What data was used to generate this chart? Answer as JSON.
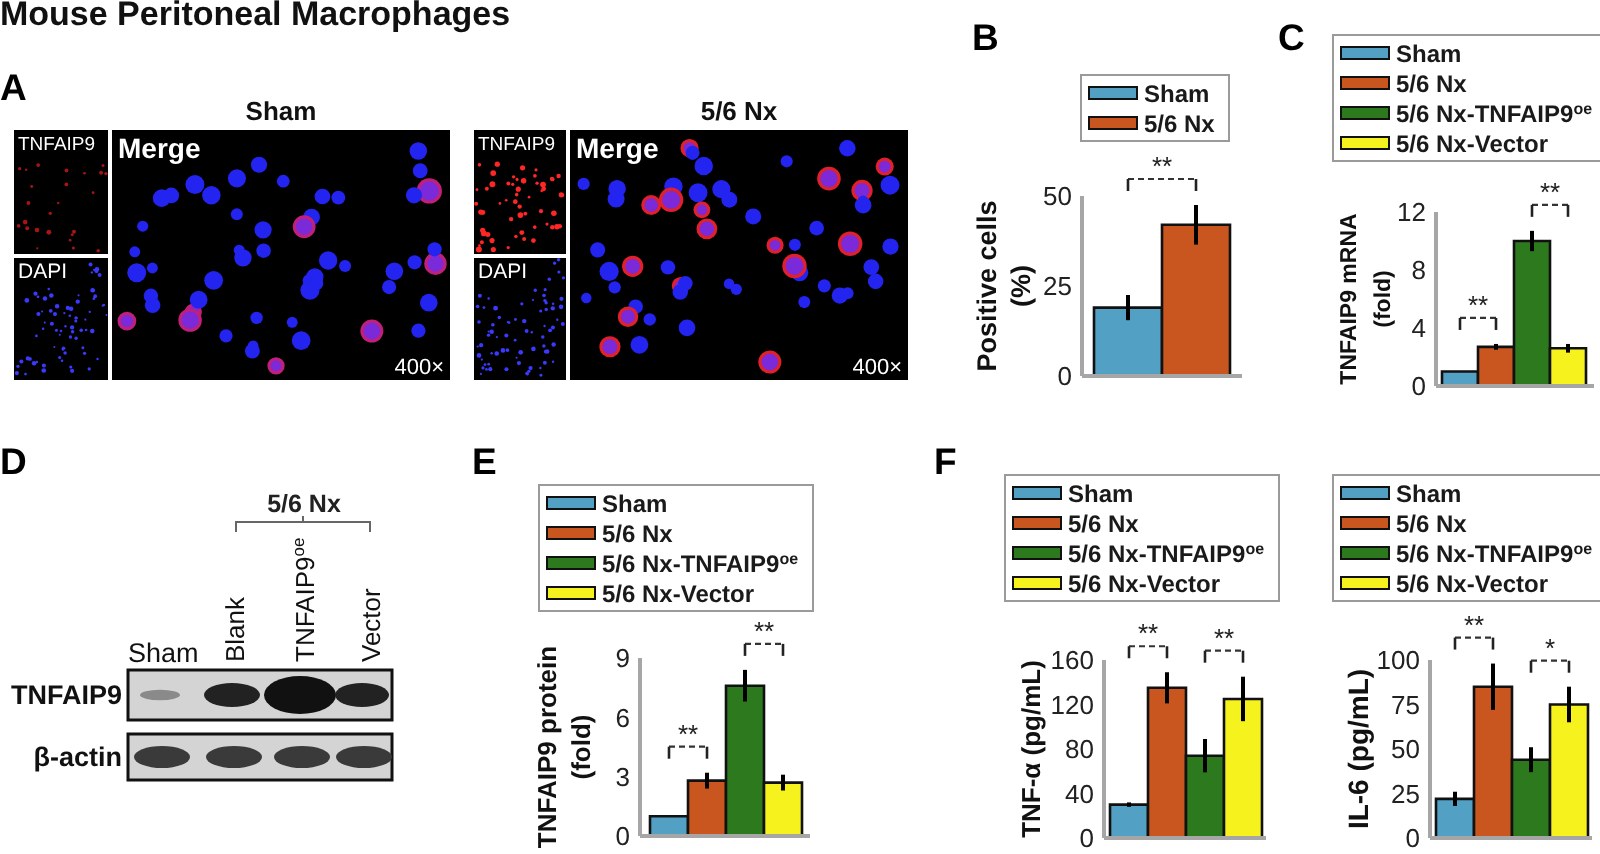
{
  "chart_data": [
    {
      "type": "other",
      "title": "Mouse Peritoneal Macrophages",
      "annotations": [
        "A",
        "Sham",
        "TNFAIP9",
        "DAPI",
        "Merge",
        "400×",
        "5/6 Nx",
        "TNFAIP9",
        "DAPI",
        "Merge",
        "400×"
      ]
    },
    {
      "type": "bar",
      "title": "B",
      "categories": [
        null
      ],
      "series": [
        {
          "name": "Sham",
          "color": "#52a0c4",
          "values": [
            19
          ],
          "errors": [
            3.5
          ]
        },
        {
          "name": "5/6 Nx",
          "color": "#c8561e",
          "values": [
            42
          ],
          "errors": [
            5.5
          ]
        }
      ],
      "ylabel": "Positive cells (%)",
      "ylim": [
        0,
        50
      ],
      "yticks": [
        0,
        25,
        50
      ],
      "legend": "top",
      "annotations": [
        "**"
      ]
    },
    {
      "type": "bar",
      "title": "C",
      "categories": [
        null
      ],
      "series": [
        {
          "name": "Sham",
          "color": "#52a0c4",
          "values": [
            1
          ]
        },
        {
          "name": "5/6 Nx",
          "color": "#c8561e",
          "values": [
            2.7
          ],
          "errors": [
            0.2
          ]
        },
        {
          "name": "5/6 Nx-TNFAIP9$^{oe}$",
          "color": "#2d7a1e",
          "values": [
            10
          ],
          "errors": [
            0.7
          ]
        },
        {
          "name": "5/6 Nx-Vector",
          "color": "#f5f21e",
          "values": [
            2.6
          ],
          "errors": [
            0.3
          ]
        }
      ],
      "ylabel": "TNFAIP9 mRNA (fold)",
      "ylim": [
        0,
        12
      ],
      "yticks": [
        0,
        4,
        8,
        12
      ],
      "legend": "top",
      "annotations": [
        "**",
        "**"
      ]
    },
    {
      "type": "other",
      "annotations": [
        "D",
        "5/6 Nx",
        "Sham",
        "Blank",
        "TNFAIP9$^{oe}$",
        "Vector",
        "TNFAIP9",
        "β-actin"
      ]
    },
    {
      "type": "bar",
      "title": "E",
      "categories": [
        null
      ],
      "series": [
        {
          "name": "Sham",
          "color": "#52a0c4",
          "values": [
            1
          ]
        },
        {
          "name": "5/6 Nx",
          "color": "#c8561e",
          "values": [
            2.8
          ],
          "errors": [
            0.4
          ]
        },
        {
          "name": "5/6 Nx-TNFAIP9$^{oe}$",
          "color": "#2d7a1e",
          "values": [
            7.6
          ],
          "errors": [
            0.8
          ]
        },
        {
          "name": "5/6 Nx-Vector",
          "color": "#f5f21e",
          "values": [
            2.7
          ],
          "errors": [
            0.4
          ]
        }
      ],
      "ylabel": "TNFAIP9 protein (fold)",
      "ylim": [
        0,
        9
      ],
      "yticks": [
        0,
        3,
        6,
        9
      ],
      "legend": "top",
      "annotations": [
        "**",
        "**"
      ]
    },
    {
      "type": "bar",
      "title": "F",
      "categories": [
        null
      ],
      "series": [
        {
          "name": "Sham",
          "color": "#52a0c4",
          "values": [
            30
          ],
          "errors": [
            2
          ]
        },
        {
          "name": "5/6 Nx",
          "color": "#c8561e",
          "values": [
            135
          ],
          "errors": [
            14
          ]
        },
        {
          "name": "5/6 Nx-TNFAIP9$^{oe}$",
          "color": "#2d7a1e",
          "values": [
            74
          ],
          "errors": [
            15
          ]
        },
        {
          "name": "5/6 Nx-Vector",
          "color": "#f5f21e",
          "values": [
            125
          ],
          "errors": [
            20
          ]
        }
      ],
      "ylabel": "TNF-α (pg/mL)",
      "ylim": [
        0,
        160
      ],
      "yticks": [
        0,
        40,
        80,
        120,
        160
      ],
      "legend": "top",
      "annotations": [
        "**",
        "**"
      ]
    },
    {
      "type": "bar",
      "categories": [
        null
      ],
      "series": [
        {
          "name": "Sham",
          "color": "#52a0c4",
          "values": [
            22
          ],
          "errors": [
            4
          ]
        },
        {
          "name": "5/6 Nx",
          "color": "#c8561e",
          "values": [
            85
          ],
          "errors": [
            13
          ]
        },
        {
          "name": "5/6 Nx-TNFAIP9$^{oe}$",
          "color": "#2d7a1e",
          "values": [
            44
          ],
          "errors": [
            7
          ]
        },
        {
          "name": "5/6 Nx-Vector",
          "color": "#f5f21e",
          "values": [
            75
          ],
          "errors": [
            10
          ]
        }
      ],
      "ylabel": "IL-6 (pg/mL)",
      "ylim": [
        0,
        100
      ],
      "yticks": [
        0,
        25,
        50,
        75,
        100
      ],
      "legend": "top",
      "annotations": [
        "**",
        "*"
      ]
    }
  ]
}
